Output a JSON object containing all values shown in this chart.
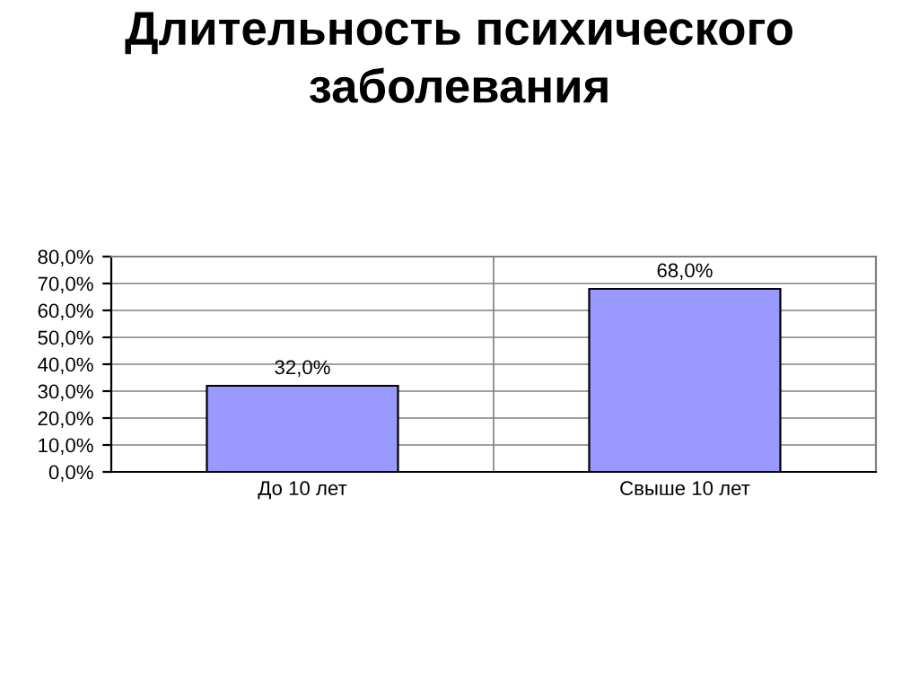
{
  "chart_data": {
    "type": "bar",
    "title": "Длительность психического заболевания",
    "categories": [
      "До 10 лет",
      "Свыше 10 лет"
    ],
    "values": [
      32,
      68
    ],
    "value_labels": [
      "32,0%",
      "68,0%"
    ],
    "color": "#9999ff",
    "ylim": [
      0,
      80
    ],
    "yticks": [
      {
        "value": 0,
        "label": "0,0%"
      },
      {
        "value": 10,
        "label": "10,0%"
      },
      {
        "value": 20,
        "label": "20,0%"
      },
      {
        "value": 30,
        "label": "30,0%"
      },
      {
        "value": 40,
        "label": "40,0%"
      },
      {
        "value": 50,
        "label": "50,0%"
      },
      {
        "value": 60,
        "label": "60,0%"
      },
      {
        "value": 70,
        "label": "70,0%"
      },
      {
        "value": 80,
        "label": "80,0%"
      }
    ],
    "grid": true
  }
}
